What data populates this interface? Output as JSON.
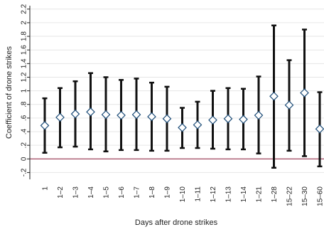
{
  "chart_data": {
    "type": "scatter",
    "style": "coefficient plot with 95% confidence interval error bars",
    "xlabel": "Days after drone strikes",
    "ylabel": "Coefficient of drone strikes",
    "ylim": [
      -0.3,
      2.25
    ],
    "yticks": [
      -0.2,
      0,
      0.2,
      0.4,
      0.6,
      0.8,
      1,
      1.2,
      1.4,
      1.6,
      1.8,
      2,
      2.2
    ],
    "ytick_labels": [
      "-.2",
      "0",
      ".2",
      ".4",
      ".6",
      ".8",
      "1",
      "1.2",
      "1.4",
      "1.6",
      "1.8",
      "2",
      "2.2"
    ],
    "categories": [
      "1",
      "1–2",
      "1–3",
      "1–4",
      "1–5",
      "1–6",
      "1–7",
      "1–8",
      "1–9",
      "1–10",
      "1–11",
      "1–12",
      "1–13",
      "1–14",
      "1–21",
      "1–28",
      "15–22",
      "15–30",
      "15–60"
    ],
    "coefficients": [
      0.49,
      0.61,
      0.66,
      0.69,
      0.65,
      0.64,
      0.65,
      0.62,
      0.59,
      0.46,
      0.5,
      0.57,
      0.59,
      0.58,
      0.64,
      0.92,
      0.79,
      0.97,
      0.44
    ],
    "ci_lower": [
      0.09,
      0.17,
      0.18,
      0.14,
      0.11,
      0.13,
      0.13,
      0.12,
      0.12,
      0.16,
      0.16,
      0.15,
      0.14,
      0.14,
      0.08,
      -0.13,
      0.12,
      0.04,
      -0.11
    ],
    "ci_upper": [
      0.89,
      1.04,
      1.14,
      1.26,
      1.2,
      1.16,
      1.18,
      1.12,
      1.06,
      0.75,
      0.84,
      1.0,
      1.04,
      1.03,
      1.21,
      1.96,
      1.45,
      1.9,
      0.98
    ],
    "reference_line": {
      "y": 0,
      "color": "#8b1a3a"
    },
    "colors": {
      "error_bar": "#111111",
      "marker_stroke": "#1f4e79",
      "marker_fill": "#ffffff",
      "grid": "#e6e6e6",
      "axis": "#222222"
    },
    "grid": true,
    "legend": "none"
  }
}
